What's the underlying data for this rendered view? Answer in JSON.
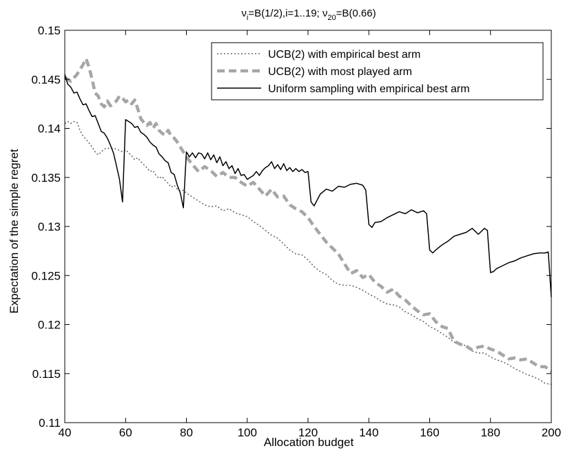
{
  "chart_data": {
    "type": "line",
    "title": {
      "parts": [
        "ν",
        "i",
        "=B(1/2),i=1..19; ν",
        "20",
        "=B(0.66)"
      ]
    },
    "xlabel": "Allocation budget",
    "ylabel": "Expectation of the simple regret",
    "xlim": [
      40,
      200
    ],
    "ylim": [
      0.11,
      0.15
    ],
    "x_ticks": [
      40,
      60,
      80,
      100,
      120,
      140,
      160,
      180,
      200
    ],
    "x_tick_labels": [
      "40",
      "60",
      "80",
      "100",
      "120",
      "140",
      "160",
      "180",
      "200"
    ],
    "y_ticks": [
      0.11,
      0.115,
      0.12,
      0.125,
      0.13,
      0.135,
      0.14,
      0.145,
      0.15
    ],
    "y_tick_labels": [
      "0.11",
      "0.115",
      "0.12",
      "0.125",
      "0.13",
      "0.135",
      "0.14",
      "0.145",
      "0.15"
    ],
    "grid": false,
    "legend_position": "top-right",
    "series": [
      {
        "name": "UCB(2) with empirical best arm",
        "style": "dotted",
        "color": "#666666",
        "x": [
          40,
          41,
          42,
          43,
          44,
          45,
          46,
          47,
          48,
          49,
          50,
          51,
          52,
          53,
          55,
          57,
          59,
          60,
          61,
          62,
          63,
          64,
          65,
          66,
          67,
          68,
          69,
          70,
          71,
          72,
          73,
          74,
          75,
          76,
          77,
          78,
          79,
          80,
          82,
          84,
          86,
          88,
          90,
          92,
          94,
          96,
          98,
          100,
          102,
          104,
          106,
          108,
          110,
          112,
          114,
          116,
          118,
          120,
          122,
          124,
          126,
          128,
          130,
          132,
          134,
          136,
          138,
          140,
          142,
          144,
          146,
          148,
          150,
          152,
          154,
          156,
          158,
          160,
          162,
          164,
          166,
          168,
          170,
          172,
          174,
          176,
          178,
          180,
          182,
          184,
          186,
          188,
          190,
          192,
          194,
          196,
          198,
          200
        ],
        "y": [
          0.1405,
          0.1407,
          0.1405,
          0.1407,
          0.1406,
          0.1398,
          0.1392,
          0.1389,
          0.1385,
          0.1381,
          0.1376,
          0.1373,
          0.1376,
          0.1379,
          0.138,
          0.1379,
          0.1376,
          0.1378,
          0.1375,
          0.1372,
          0.1368,
          0.137,
          0.1366,
          0.1363,
          0.136,
          0.1356,
          0.1357,
          0.1352,
          0.1349,
          0.1351,
          0.1347,
          0.1344,
          0.134,
          0.1342,
          0.1338,
          0.1336,
          0.1337,
          0.1334,
          0.133,
          0.1326,
          0.1322,
          0.132,
          0.1321,
          0.1316,
          0.1318,
          0.1314,
          0.1312,
          0.131,
          0.1305,
          0.1301,
          0.1296,
          0.1291,
          0.1288,
          0.1282,
          0.1276,
          0.1272,
          0.1271,
          0.1266,
          0.1259,
          0.1254,
          0.1251,
          0.1245,
          0.1241,
          0.124,
          0.124,
          0.1238,
          0.1235,
          0.1231,
          0.1228,
          0.1224,
          0.1221,
          0.122,
          0.1218,
          0.1213,
          0.121,
          0.1206,
          0.1203,
          0.1198,
          0.1195,
          0.1191,
          0.1187,
          0.1182,
          0.1181,
          0.1178,
          0.1173,
          0.1171,
          0.1171,
          0.1167,
          0.1164,
          0.1162,
          0.1159,
          0.1155,
          0.1152,
          0.1149,
          0.1147,
          0.1144,
          0.114,
          0.1139
        ]
      },
      {
        "name": "UCB(2) with most played arm",
        "style": "dashed",
        "color": "#a6a6a6",
        "x": [
          40,
          42,
          44,
          46,
          47,
          48,
          49,
          50,
          51,
          52,
          53,
          54,
          55,
          56,
          57,
          58,
          59,
          60,
          61,
          62,
          63,
          64,
          65,
          66,
          67,
          68,
          69,
          70,
          71,
          72,
          73,
          74,
          75,
          76,
          77,
          78,
          79,
          80,
          82,
          84,
          86,
          88,
          90,
          92,
          94,
          96,
          98,
          100,
          102,
          104,
          106,
          108,
          110,
          112,
          114,
          116,
          118,
          120,
          122,
          124,
          126,
          128,
          130,
          132,
          134,
          136,
          138,
          140,
          142,
          144,
          146,
          148,
          150,
          152,
          154,
          156,
          158,
          160,
          162,
          164,
          166,
          168,
          170,
          172,
          174,
          176,
          178,
          180,
          182,
          184,
          186,
          188,
          190,
          192,
          194,
          196,
          198,
          200
        ],
        "y": [
          0.1452,
          0.1448,
          0.1455,
          0.1465,
          0.1471,
          0.1462,
          0.145,
          0.1436,
          0.1433,
          0.1425,
          0.1422,
          0.1428,
          0.1423,
          0.1425,
          0.1428,
          0.1433,
          0.1431,
          0.1427,
          0.1429,
          0.1425,
          0.1429,
          0.142,
          0.141,
          0.1406,
          0.1403,
          0.1406,
          0.14,
          0.1405,
          0.1398,
          0.1395,
          0.1393,
          0.1398,
          0.1392,
          0.139,
          0.1386,
          0.1381,
          0.1376,
          0.1371,
          0.1363,
          0.1356,
          0.1361,
          0.1357,
          0.1351,
          0.1355,
          0.135,
          0.135,
          0.1345,
          0.1341,
          0.1345,
          0.1338,
          0.1331,
          0.1338,
          0.133,
          0.1331,
          0.1322,
          0.1318,
          0.1315,
          0.1309,
          0.13,
          0.1292,
          0.1284,
          0.1278,
          0.1272,
          0.1262,
          0.1252,
          0.1255,
          0.1248,
          0.1251,
          0.1243,
          0.1239,
          0.1233,
          0.1236,
          0.1229,
          0.1225,
          0.1219,
          0.1214,
          0.121,
          0.1211,
          0.1203,
          0.1198,
          0.1196,
          0.1183,
          0.118,
          0.1178,
          0.1174,
          0.1177,
          0.1178,
          0.1175,
          0.1173,
          0.1169,
          0.1165,
          0.1166,
          0.1164,
          0.1165,
          0.1161,
          0.1157,
          0.1157,
          0.1152
        ]
      },
      {
        "name": "Uniform sampling with empirical best arm",
        "style": "solid",
        "color": "#000000",
        "x": [
          40,
          41,
          42,
          43,
          44,
          45,
          46,
          47,
          48,
          49,
          50,
          51,
          52,
          53,
          54,
          55,
          56,
          57,
          58,
          59,
          60,
          61,
          62,
          63,
          64,
          65,
          66,
          67,
          68,
          69,
          70,
          71,
          72,
          73,
          74,
          75,
          76,
          77,
          78,
          79,
          80,
          81,
          82,
          83,
          84,
          85,
          86,
          87,
          88,
          89,
          90,
          91,
          92,
          93,
          94,
          95,
          96,
          97,
          98,
          99,
          100,
          101,
          102,
          103,
          104,
          105,
          106,
          107,
          108,
          109,
          110,
          111,
          112,
          113,
          114,
          115,
          116,
          117,
          118,
          119,
          120,
          121,
          122,
          124,
          126,
          128,
          130,
          132,
          134,
          136,
          138,
          139,
          140,
          141,
          142,
          144,
          146,
          148,
          150,
          152,
          154,
          156,
          158,
          159,
          160,
          161,
          162,
          164,
          166,
          168,
          170,
          172,
          174,
          176,
          178,
          179,
          180,
          181,
          182,
          184,
          186,
          188,
          190,
          192,
          194,
          196,
          198,
          199,
          200
        ],
        "y": [
          0.1455,
          0.1445,
          0.1442,
          0.1436,
          0.1437,
          0.143,
          0.1424,
          0.1425,
          0.1418,
          0.1412,
          0.1413,
          0.1405,
          0.1397,
          0.1395,
          0.139,
          0.1383,
          0.1375,
          0.1362,
          0.1348,
          0.1325,
          0.1409,
          0.1407,
          0.1405,
          0.1401,
          0.1402,
          0.1396,
          0.1394,
          0.1391,
          0.1386,
          0.1383,
          0.1381,
          0.1374,
          0.1371,
          0.1367,
          0.1365,
          0.1355,
          0.1353,
          0.1342,
          0.1334,
          0.1319,
          0.1376,
          0.1371,
          0.1375,
          0.137,
          0.1375,
          0.1374,
          0.1369,
          0.1375,
          0.1368,
          0.1373,
          0.1365,
          0.1371,
          0.1362,
          0.1366,
          0.1359,
          0.1362,
          0.1354,
          0.1359,
          0.1352,
          0.1353,
          0.1348,
          0.135,
          0.1352,
          0.1356,
          0.1352,
          0.1357,
          0.136,
          0.1362,
          0.1366,
          0.1359,
          0.1363,
          0.1358,
          0.1364,
          0.1357,
          0.136,
          0.1356,
          0.1359,
          0.1356,
          0.1358,
          0.1355,
          0.1356,
          0.1325,
          0.1321,
          0.1333,
          0.1338,
          0.1336,
          0.1341,
          0.134,
          0.1343,
          0.1344,
          0.1342,
          0.1337,
          0.1302,
          0.1299,
          0.1304,
          0.1305,
          0.1309,
          0.1312,
          0.1315,
          0.1313,
          0.1317,
          0.1314,
          0.1316,
          0.1313,
          0.1276,
          0.1273,
          0.1276,
          0.1281,
          0.1285,
          0.129,
          0.1292,
          0.1294,
          0.1298,
          0.1292,
          0.1298,
          0.1296,
          0.1253,
          0.1254,
          0.1257,
          0.126,
          0.1263,
          0.1265,
          0.1268,
          0.127,
          0.1272,
          0.1273,
          0.1273,
          0.1274,
          0.1228
        ]
      }
    ]
  }
}
